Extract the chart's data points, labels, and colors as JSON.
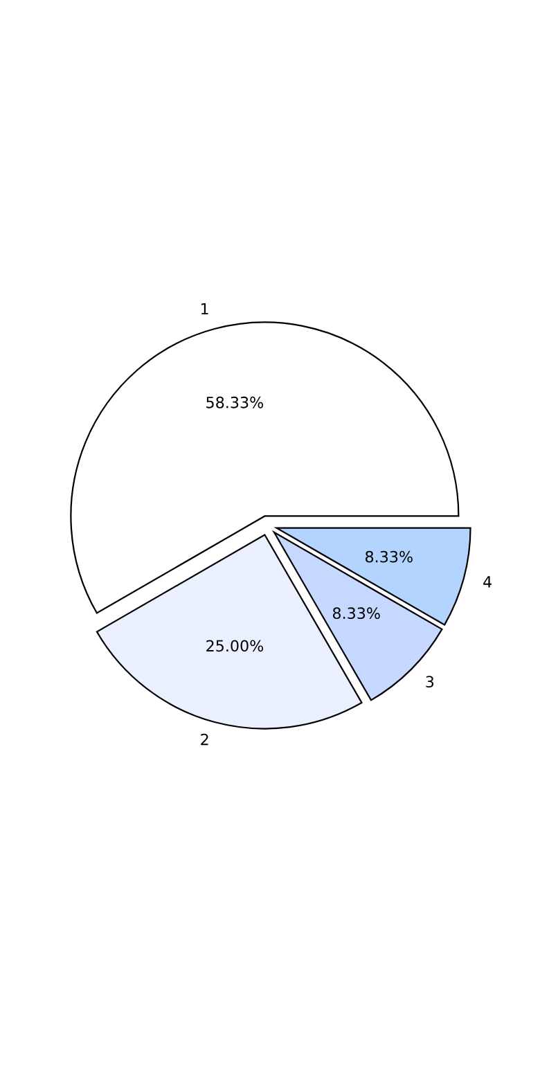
{
  "chart_data": {
    "type": "pie",
    "categories": [
      "1",
      "2",
      "3",
      "4"
    ],
    "values": [
      58.33,
      25.0,
      8.33,
      8.33
    ],
    "colors": [
      "#ffffff",
      "#eaf0ff",
      "#c6d8ff",
      "#b3d4ff"
    ],
    "value_labels": [
      "58.33%",
      "25.00%",
      "8.33%",
      "8.33%"
    ]
  }
}
